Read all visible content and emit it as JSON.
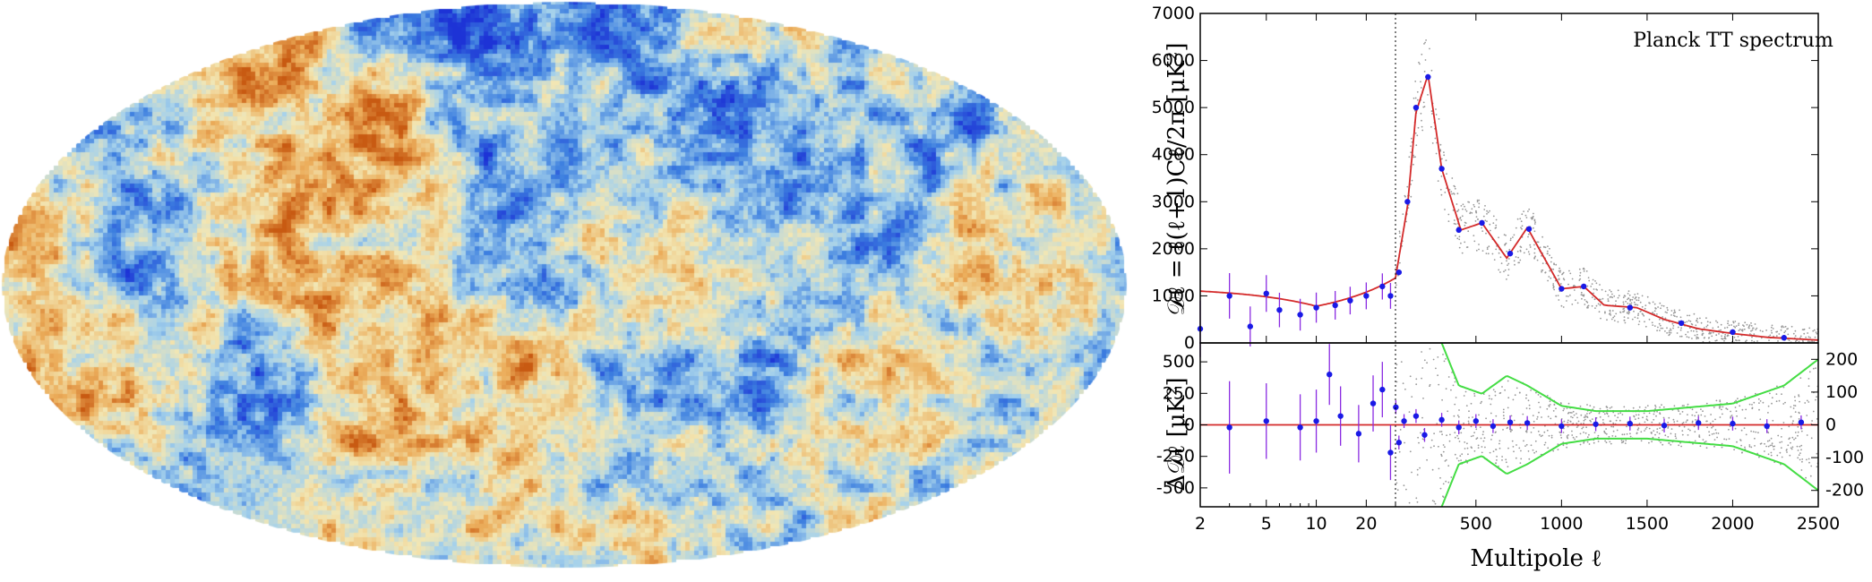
{
  "chart_data": [
    {
      "type": "heatmap",
      "projection": "mollweide",
      "colormap": [
        "#1d33d6",
        "#3d7fe0",
        "#a6d2ec",
        "#f3e7b4",
        "#ecae5c",
        "#c85a12"
      ]
    },
    {
      "type": "scatter",
      "title": "Planck TT spectrum",
      "ylabel": "𝒟ℓ = ℓ(ℓ+1)Cℓ/2π  [μK²]",
      "xlabel": "Multipole  ℓ",
      "x_scale": "log (2–30), linear (30–2500)",
      "xlim": [
        2,
        2500
      ],
      "ylim": [
        0,
        7000
      ],
      "x_ticks": [
        "2",
        "5",
        "10",
        "20",
        "500",
        "1000",
        "1500",
        "2000",
        "2500"
      ],
      "y_ticks": [
        "0",
        "1000",
        "2000",
        "3000",
        "4000",
        "5000",
        "6000",
        "7000"
      ],
      "scale_break_at": 30,
      "colors": {
        "data": "#1a1ae6",
        "errorbars": "#8a2be2",
        "model": "#d42a2a",
        "scatter": "#999999"
      },
      "model": {
        "x": [
          2,
          10,
          30,
          100,
          150,
          220,
          300,
          412,
          535,
          680,
          800,
          1000,
          1130,
          1250,
          1440,
          1600,
          1800,
          2000,
          2200,
          2500
        ],
        "y": [
          1100,
          780,
          1380,
          2900,
          4900,
          5700,
          3700,
          2400,
          2550,
          1800,
          2450,
          1150,
          1200,
          800,
          750,
          500,
          300,
          200,
          120,
          60
        ]
      },
      "points": {
        "x": [
          2,
          3,
          4,
          5,
          6,
          8,
          10,
          13,
          16,
          20,
          25,
          28,
          50,
          100,
          150,
          220,
          300,
          400,
          535,
          700,
          810,
          1000,
          1130,
          1400,
          1700,
          2000,
          2300
        ],
        "y": [
          300,
          1000,
          350,
          1050,
          700,
          600,
          750,
          800,
          900,
          1000,
          1200,
          1000,
          1500,
          3000,
          5000,
          5650,
          3700,
          2400,
          2550,
          1900,
          2420,
          1150,
          1200,
          750,
          420,
          230,
          110
        ]
      }
    },
    {
      "type": "scatter",
      "ylabel": "Δ𝒟ℓ  [μK²]",
      "xlabel": "Multipole  ℓ",
      "xlim": [
        2,
        2500
      ],
      "ylim": [
        -650,
        650
      ],
      "y_ticks": [
        "500",
        "250",
        "0",
        "-250",
        "-500"
      ],
      "y2_ticks": [
        "200",
        "100",
        "0",
        "-100",
        "-200"
      ],
      "y2lim": [
        -250,
        250
      ],
      "colors": {
        "data": "#1a1ae6",
        "errorbars": "#8a2be2",
        "zero_line": "#d42a2a",
        "envelope": "#44dd44",
        "scatter": "#999999"
      },
      "envelope": {
        "x": [
          30,
          400,
          535,
          680,
          800,
          1000,
          1200,
          1500,
          2000,
          2300,
          2500
        ],
        "y": [
          600,
          120,
          95,
          150,
          120,
          58,
          42,
          42,
          65,
          120,
          200
        ]
      },
      "points": {
        "x": [
          3,
          5,
          8,
          10,
          12,
          14,
          18,
          22,
          25,
          28,
          32,
          50,
          80,
          150,
          200,
          300,
          400,
          500,
          600,
          700,
          800,
          1000,
          1200,
          1400,
          1600,
          1800,
          2000,
          2200,
          2400
        ],
        "y": [
          -20,
          30,
          -20,
          30,
          400,
          70,
          -70,
          170,
          280,
          -220,
          140,
          -140,
          30,
          70,
          -80,
          40,
          -20,
          30,
          -10,
          20,
          15,
          -10,
          5,
          10,
          -5,
          15,
          10,
          -10,
          20
        ]
      }
    }
  ]
}
